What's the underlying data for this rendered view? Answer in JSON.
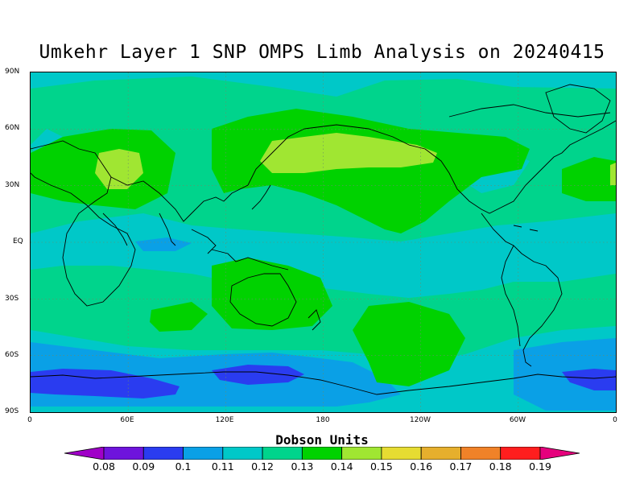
{
  "title": "Umkehr Layer 1 SNP OMPS Limb Analysis on 20240415",
  "colorbar": {
    "label": "Dobson Units",
    "ticks": [
      "0.08",
      "0.09",
      "0.1",
      "0.11",
      "0.12",
      "0.13",
      "0.14",
      "0.15",
      "0.16",
      "0.17",
      "0.18",
      "0.19"
    ],
    "colors": [
      "#a000c8",
      "#6e14dc",
      "#2a3cf0",
      "#0aa0e6",
      "#00c8c8",
      "#00d48c",
      "#00d200",
      "#a0e632",
      "#e6dc32",
      "#e6af2d",
      "#f08228",
      "#ff1e1e",
      "#e6007d"
    ]
  },
  "axes": {
    "lat_labels": [
      "90N",
      "60N",
      "30N",
      "EQ",
      "30S",
      "60S",
      "90S"
    ],
    "lon_labels": [
      "0",
      "60E",
      "120E",
      "180",
      "120W",
      "60W",
      "0"
    ]
  },
  "legend_colors": {
    "v011": "#0aa0e6",
    "v012": "#00c8c8",
    "v013": "#00d48c",
    "v014": "#00d200",
    "v015": "#a0e632",
    "v010": "#2a3cf0"
  },
  "chart_data": {
    "type": "heatmap",
    "title": "Umkehr Layer 1 SNP OMPS Limb Analysis on 20240415",
    "xlabel": "",
    "ylabel": "",
    "colorbar_label": "Dobson Units",
    "x_range": [
      "0",
      "0"
    ],
    "y_range": [
      "90S",
      "90N"
    ],
    "value_range": [
      0.08,
      0.19
    ]
  }
}
